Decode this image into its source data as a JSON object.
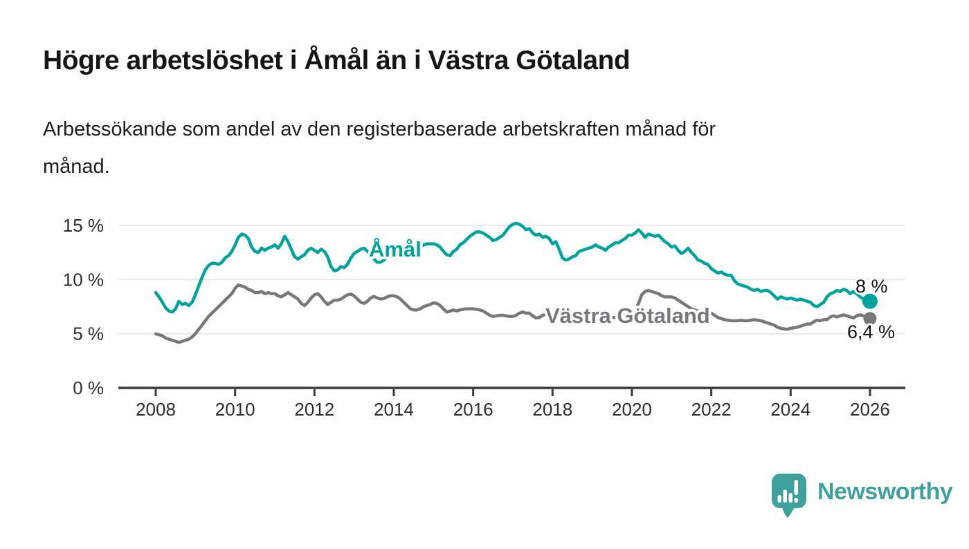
{
  "header": {
    "title": "Högre arbetslöshet i Åmål än i Västra Götaland",
    "subtitle": "Arbetssökande som andel av den registerbaserade arbetskraften månad för\nmånad."
  },
  "chart_data": {
    "type": "line",
    "title": "Högre arbetslöshet i Åmål än i Västra Götaland",
    "subtitle": "Arbetssökande som andel av den registerbaserade arbetskraften månad för månad.",
    "x_unit": "year (monthly values)",
    "x_start_year": 2008,
    "x_points_per_year": 12,
    "x_ticks": [
      2008,
      2010,
      2012,
      2014,
      2016,
      2018,
      2020,
      2022,
      2024,
      2026
    ],
    "y_ticks": [
      {
        "value": 0,
        "label": "0 %"
      },
      {
        "value": 5,
        "label": "5 %"
      },
      {
        "value": 10,
        "label": "10 %"
      },
      {
        "value": 15,
        "label": "15 %"
      }
    ],
    "ylim": [
      0,
      16
    ],
    "grid": "horizontal",
    "legend_position": "inline-labels",
    "series": [
      {
        "name": "Åmål",
        "color": "#00a39b",
        "end_label": "8 %",
        "end_value": 8.0,
        "values": [
          8.8,
          8.4,
          7.9,
          7.4,
          7.1,
          7.0,
          7.3,
          8.0,
          7.7,
          7.8,
          7.6,
          7.9,
          8.6,
          9.4,
          10.2,
          10.9,
          11.3,
          11.5,
          11.5,
          11.4,
          11.6,
          12.0,
          12.2,
          12.6,
          13.2,
          13.9,
          14.2,
          14.1,
          13.8,
          13.0,
          12.6,
          12.5,
          12.9,
          12.7,
          12.9,
          13.0,
          13.2,
          12.9,
          13.3,
          14.0,
          13.5,
          12.8,
          12.1,
          11.9,
          12.1,
          12.3,
          12.7,
          12.9,
          12.7,
          12.5,
          12.8,
          12.6,
          12.1,
          11.2,
          10.8,
          10.9,
          11.2,
          11.1,
          11.4,
          12.0,
          12.4,
          12.6,
          12.8,
          12.9,
          12.6,
          12.3,
          11.9,
          11.6,
          11.6,
          11.8,
          12.1,
          12.3,
          12.5,
          12.6,
          12.7,
          12.6,
          12.7,
          12.6,
          12.6,
          12.8,
          13.0,
          13.2,
          13.3,
          13.3,
          13.3,
          13.2,
          13.0,
          12.6,
          12.3,
          12.2,
          12.6,
          12.8,
          13.2,
          13.4,
          13.7,
          14.0,
          14.2,
          14.4,
          14.4,
          14.3,
          14.1,
          13.9,
          13.6,
          13.7,
          13.9,
          14.1,
          14.5,
          14.9,
          15.1,
          15.2,
          15.1,
          14.9,
          14.6,
          14.7,
          14.3,
          14.1,
          14.2,
          13.9,
          14.0,
          13.8,
          13.3,
          13.5,
          12.8,
          12.0,
          11.8,
          11.9,
          12.1,
          12.2,
          12.6,
          12.7,
          12.8,
          12.9,
          13.0,
          13.2,
          13.0,
          12.9,
          12.7,
          13.0,
          13.2,
          13.4,
          13.4,
          13.6,
          13.8,
          14.1,
          14.1,
          14.3,
          14.6,
          14.3,
          13.9,
          14.2,
          14.1,
          14.0,
          14.1,
          13.8,
          13.5,
          13.3,
          13.0,
          13.1,
          12.7,
          12.4,
          12.6,
          12.9,
          12.5,
          12.2,
          11.8,
          11.7,
          11.5,
          11.4,
          11.0,
          10.8,
          10.6,
          10.7,
          10.5,
          10.4,
          10.4,
          9.9,
          9.6,
          9.5,
          9.4,
          9.3,
          9.1,
          9.0,
          9.1,
          8.9,
          9.0,
          9.0,
          8.8,
          8.5,
          8.2,
          8.4,
          8.3,
          8.2,
          8.3,
          8.2,
          8.1,
          8.2,
          8.1,
          8.0,
          7.9,
          7.6,
          7.5,
          7.7,
          7.9,
          8.4,
          8.7,
          8.8,
          9.0,
          8.9,
          9.1,
          9.0,
          8.7,
          8.9,
          8.7,
          8.4,
          8.2,
          7.9,
          8.0
        ]
      },
      {
        "name": "Västra Götaland",
        "color": "#78787c",
        "end_label": "6,4 %",
        "end_value": 6.4,
        "values": [
          5.0,
          4.9,
          4.8,
          4.6,
          4.5,
          4.4,
          4.3,
          4.2,
          4.3,
          4.4,
          4.5,
          4.7,
          5.0,
          5.4,
          5.8,
          6.2,
          6.6,
          6.9,
          7.2,
          7.5,
          7.8,
          8.1,
          8.4,
          8.7,
          9.2,
          9.5,
          9.4,
          9.3,
          9.1,
          9.0,
          8.8,
          8.8,
          8.9,
          8.7,
          8.8,
          8.7,
          8.7,
          8.5,
          8.4,
          8.6,
          8.8,
          8.6,
          8.4,
          8.2,
          7.8,
          7.6,
          7.9,
          8.3,
          8.6,
          8.7,
          8.4,
          8.0,
          7.7,
          7.9,
          8.1,
          8.1,
          8.2,
          8.4,
          8.6,
          8.65,
          8.5,
          8.2,
          7.9,
          7.8,
          8.0,
          8.3,
          8.45,
          8.3,
          8.2,
          8.25,
          8.4,
          8.5,
          8.5,
          8.4,
          8.2,
          7.9,
          7.6,
          7.3,
          7.2,
          7.2,
          7.3,
          7.5,
          7.6,
          7.7,
          7.85,
          7.8,
          7.6,
          7.3,
          7.0,
          7.1,
          7.2,
          7.1,
          7.2,
          7.25,
          7.3,
          7.3,
          7.3,
          7.25,
          7.2,
          7.1,
          6.9,
          6.7,
          6.6,
          6.65,
          6.7,
          6.7,
          6.65,
          6.6,
          6.6,
          6.7,
          6.9,
          7.0,
          6.9,
          6.9,
          6.65,
          6.45,
          6.5,
          6.7,
          6.8,
          6.85,
          6.8,
          6.7,
          6.6,
          6.5,
          6.4,
          6.4,
          6.3,
          6.3,
          6.3,
          6.35,
          6.4,
          6.4,
          6.5,
          6.5,
          6.4,
          6.4,
          6.4,
          6.5,
          6.5,
          6.5,
          6.5,
          6.5,
          6.6,
          6.7,
          6.9,
          7.1,
          7.8,
          8.6,
          8.9,
          9.0,
          8.9,
          8.8,
          8.7,
          8.5,
          8.4,
          8.4,
          8.4,
          8.3,
          8.1,
          7.9,
          7.7,
          7.5,
          7.3,
          7.2,
          7.1,
          7.0,
          7.0,
          7.0,
          6.9,
          6.7,
          6.5,
          6.4,
          6.3,
          6.25,
          6.2,
          6.2,
          6.2,
          6.25,
          6.2,
          6.2,
          6.25,
          6.3,
          6.25,
          6.2,
          6.1,
          6.0,
          5.9,
          5.8,
          5.6,
          5.5,
          5.45,
          5.4,
          5.5,
          5.55,
          5.6,
          5.7,
          5.8,
          5.9,
          5.9,
          6.1,
          6.25,
          6.2,
          6.3,
          6.3,
          6.55,
          6.65,
          6.55,
          6.65,
          6.75,
          6.65,
          6.55,
          6.45,
          6.65,
          6.75,
          6.65,
          6.55,
          6.4
        ]
      }
    ]
  },
  "footer": {
    "brand": "Newsworthy",
    "logo_icon": "bar-chart-speech-bubble-icon"
  },
  "colors": {
    "accent_teal": "#00a39b",
    "series_gray": "#78787c",
    "logo_teal": "#3fa19c",
    "axis": "#3a3a3a",
    "grid": "#e3e3e3",
    "title_text": "#161616",
    "background": "#ffffff"
  }
}
